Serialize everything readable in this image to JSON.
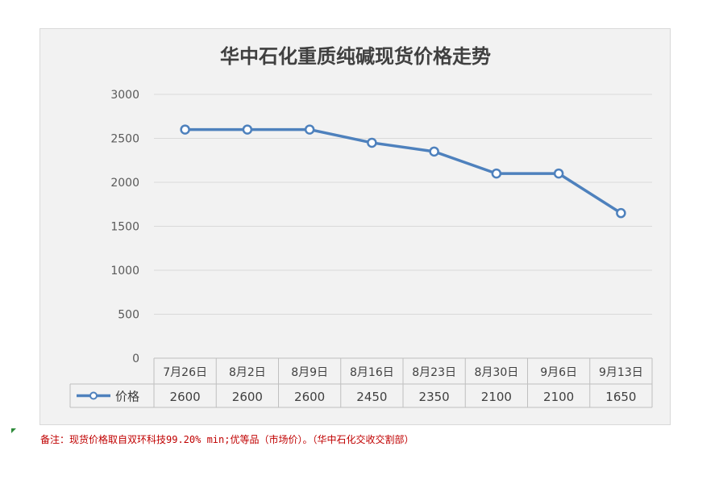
{
  "chart_data": {
    "type": "line",
    "title": "华中石化重质纯碱现货价格走势",
    "categories": [
      "7月26日",
      "8月2日",
      "8月9日",
      "8月16日",
      "8月23日",
      "8月30日",
      "9月6日",
      "9月13日"
    ],
    "series": [
      {
        "name": "价格",
        "values": [
          2600,
          2600,
          2600,
          2450,
          2350,
          2100,
          2100,
          1650
        ]
      }
    ],
    "ylim": [
      0,
      3000
    ],
    "yticks": [
      0,
      500,
      1000,
      1500,
      2000,
      2500,
      3000
    ],
    "grid": true,
    "legend": "data-table-left",
    "data_table": true,
    "colors": {
      "line": "#4e81bd",
      "marker_fill": "#ffffff",
      "grid": "#d9d9d9",
      "background": "#f2f2f2",
      "footnote": "#c00000"
    }
  },
  "footnote": "备注：现货价格取自双环科技99.20% min;优等品（市场价）。（华中石化交收交割部）"
}
